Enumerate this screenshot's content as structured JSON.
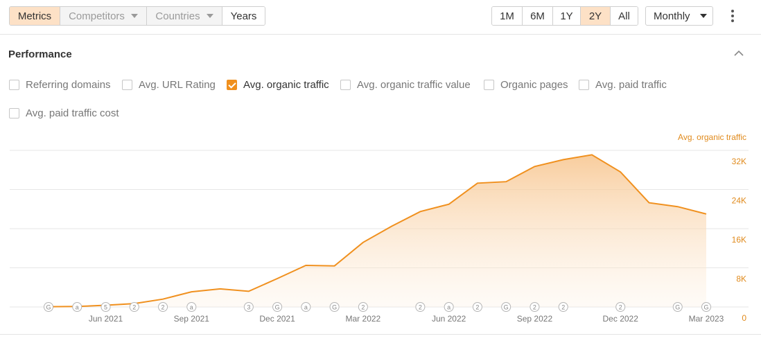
{
  "toolbar": {
    "view_tabs": [
      {
        "label": "Metrics",
        "state": "active"
      },
      {
        "label": "Competitors",
        "state": "disabled",
        "dropdown": true
      },
      {
        "label": "Countries",
        "state": "disabled",
        "dropdown": true
      },
      {
        "label": "Years",
        "state": "normal"
      }
    ],
    "range_tabs": [
      {
        "label": "1M",
        "active": false
      },
      {
        "label": "6M",
        "active": false
      },
      {
        "label": "1Y",
        "active": false
      },
      {
        "label": "2Y",
        "active": true
      },
      {
        "label": "All",
        "active": false
      }
    ],
    "interval": "Monthly"
  },
  "section": {
    "title": "Performance"
  },
  "metrics": [
    {
      "label": "Referring domains",
      "checked": false
    },
    {
      "label": "Avg. URL Rating",
      "checked": false
    },
    {
      "label": "Avg. organic traffic",
      "checked": true
    },
    {
      "label": "Avg. organic traffic value",
      "checked": false
    },
    {
      "label": "Organic pages",
      "checked": false
    },
    {
      "label": "Avg. paid traffic",
      "checked": false
    },
    {
      "label": "Avg. paid traffic cost",
      "checked": false
    }
  ],
  "colors": {
    "accent": "#f0901e",
    "active_tab_bg": "#fde1c6",
    "axis_label": "#e08a1c"
  },
  "chart_data": {
    "type": "area",
    "series": [
      {
        "name": "Avg. organic traffic",
        "x": [
          "2021-04",
          "2021-05",
          "2021-06",
          "2021-07",
          "2021-08",
          "2021-09",
          "2021-10",
          "2021-11",
          "2021-12",
          "2022-01",
          "2022-02",
          "2022-03",
          "2022-04",
          "2022-05",
          "2022-06",
          "2022-07",
          "2022-08",
          "2022-09",
          "2022-10",
          "2022-11",
          "2022-12",
          "2023-01",
          "2023-02",
          "2023-03"
        ],
        "values": [
          50,
          100,
          350,
          700,
          1600,
          3100,
          3700,
          3200,
          5800,
          8500,
          8400,
          13200,
          16500,
          19500,
          21000,
          25300,
          25600,
          28700,
          30100,
          31100,
          27600,
          21300,
          20500,
          19000
        ]
      }
    ],
    "x_tick_labels": [
      "Jun 2021",
      "Sep 2021",
      "Dec 2021",
      "Mar 2022",
      "Jun 2022",
      "Sep 2022",
      "Dec 2022",
      "Mar 2023"
    ],
    "x_tick_dates": [
      "2021-06",
      "2021-09",
      "2021-12",
      "2022-03",
      "2022-06",
      "2022-09",
      "2022-12",
      "2023-03"
    ],
    "y_tick_labels": [
      "0",
      "8K",
      "16K",
      "24K",
      "32K"
    ],
    "y_tick_values": [
      0,
      8000,
      16000,
      24000,
      32000
    ],
    "ylim": [
      0,
      32000
    ],
    "y_axis_title": "Avg. organic traffic",
    "grid": true,
    "annotations": [
      {
        "date": "2021-04",
        "label": "G"
      },
      {
        "date": "2021-05",
        "label": "a"
      },
      {
        "date": "2021-06",
        "label": "5"
      },
      {
        "date": "2021-07",
        "label": "2"
      },
      {
        "date": "2021-08",
        "label": "2"
      },
      {
        "date": "2021-09",
        "label": "a"
      },
      {
        "date": "2021-11",
        "label": "3"
      },
      {
        "date": "2021-12",
        "label": "G"
      },
      {
        "date": "2022-01",
        "label": "a"
      },
      {
        "date": "2022-02",
        "label": "G"
      },
      {
        "date": "2022-03",
        "label": "2"
      },
      {
        "date": "2022-05",
        "label": "2"
      },
      {
        "date": "2022-06",
        "label": "a"
      },
      {
        "date": "2022-07",
        "label": "2"
      },
      {
        "date": "2022-08",
        "label": "G"
      },
      {
        "date": "2022-09",
        "label": "2"
      },
      {
        "date": "2022-10",
        "label": "2"
      },
      {
        "date": "2022-12",
        "label": "2"
      },
      {
        "date": "2023-02",
        "label": "G"
      },
      {
        "date": "2023-03",
        "label": "G"
      }
    ]
  }
}
